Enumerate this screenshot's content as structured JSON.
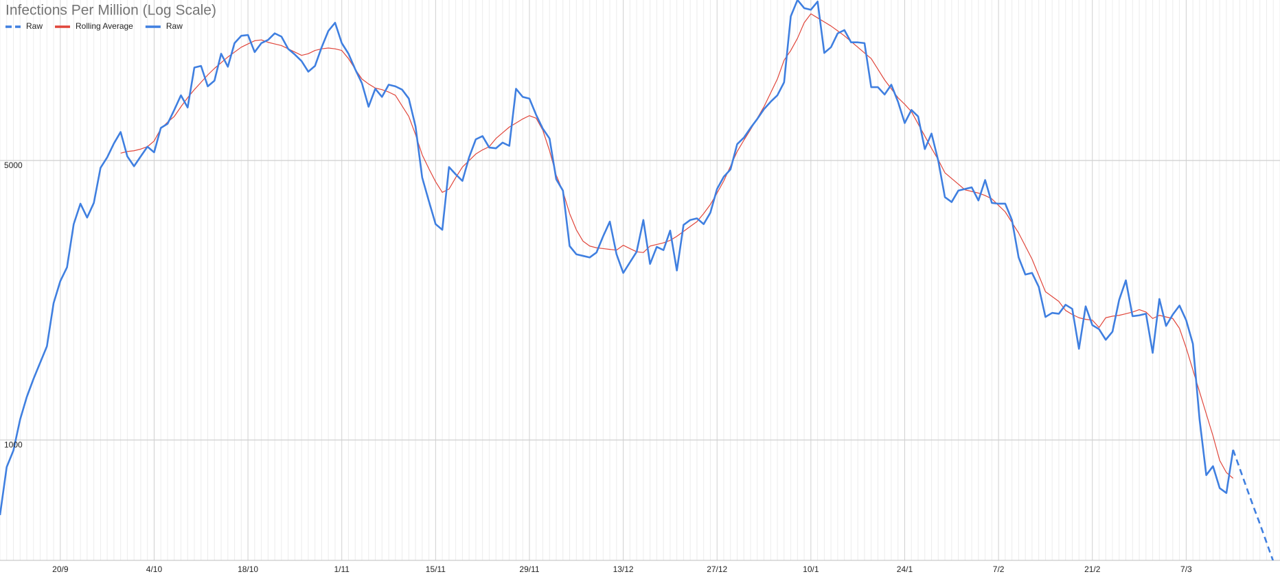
{
  "chart_data": {
    "type": "line",
    "title": "Infections Per Million (Log Scale)",
    "log_scale": true,
    "grid": true,
    "legend": "top-left",
    "categories": [
      null,
      null,
      null,
      null,
      null,
      null,
      null,
      null,
      null,
      "20/9",
      null,
      null,
      null,
      null,
      null,
      null,
      null,
      null,
      null,
      null,
      null,
      null,
      null,
      "4/10",
      null,
      null,
      null,
      null,
      null,
      null,
      null,
      null,
      null,
      null,
      null,
      null,
      null,
      "18/10",
      null,
      null,
      null,
      null,
      null,
      null,
      null,
      null,
      null,
      null,
      null,
      null,
      null,
      "1/11",
      null,
      null,
      null,
      null,
      null,
      null,
      null,
      null,
      null,
      null,
      null,
      null,
      null,
      "15/11",
      null,
      null,
      null,
      null,
      null,
      null,
      null,
      null,
      null,
      null,
      null,
      null,
      null,
      "29/11",
      null,
      null,
      null,
      null,
      null,
      null,
      null,
      null,
      null,
      null,
      null,
      null,
      null,
      "13/12",
      null,
      null,
      null,
      null,
      null,
      null,
      null,
      null,
      null,
      null,
      null,
      null,
      null,
      "27/12",
      null,
      null,
      null,
      null,
      null,
      null,
      null,
      null,
      null,
      null,
      null,
      null,
      null,
      "10/1",
      null,
      null,
      null,
      null,
      null,
      null,
      null,
      null,
      null,
      null,
      null,
      null,
      null,
      "24/1",
      null,
      null,
      null,
      null,
      null,
      null,
      null,
      null,
      null,
      null,
      null,
      null,
      null,
      "7/2",
      null,
      null,
      null,
      null,
      null,
      null,
      null,
      null,
      null,
      null,
      null,
      null,
      null,
      "21/2",
      null,
      null,
      null,
      null,
      null,
      null,
      null,
      null,
      null,
      null,
      null,
      null,
      null,
      "7/3",
      null,
      null,
      null,
      null,
      null,
      null,
      null,
      null,
      null,
      null,
      null,
      null,
      null,
      null
    ],
    "ylim": [
      500,
      12600
    ],
    "yticks": [
      1000,
      5000
    ],
    "series": [
      {
        "name": "Raw",
        "color": "#3f7fe0",
        "dashed": true,
        "values": [
          null,
          null,
          null,
          null,
          null,
          null,
          null,
          null,
          null,
          null,
          null,
          null,
          null,
          null,
          null,
          null,
          null,
          null,
          null,
          null,
          null,
          null,
          null,
          null,
          null,
          null,
          null,
          null,
          null,
          null,
          null,
          null,
          null,
          null,
          null,
          null,
          null,
          null,
          null,
          null,
          null,
          null,
          null,
          null,
          null,
          null,
          null,
          null,
          null,
          null,
          null,
          null,
          null,
          null,
          null,
          null,
          null,
          null,
          null,
          null,
          null,
          null,
          null,
          null,
          null,
          null,
          null,
          null,
          null,
          null,
          null,
          null,
          null,
          null,
          null,
          null,
          null,
          null,
          null,
          null,
          null,
          null,
          null,
          null,
          null,
          null,
          null,
          null,
          null,
          null,
          null,
          null,
          null,
          null,
          null,
          null,
          null,
          null,
          null,
          null,
          null,
          null,
          null,
          null,
          null,
          null,
          null,
          null,
          null,
          null,
          null,
          null,
          null,
          null,
          null,
          null,
          null,
          null,
          null,
          null,
          null,
          null,
          null,
          null,
          null,
          null,
          null,
          null,
          null,
          null,
          null,
          null,
          null,
          null,
          null,
          null,
          null,
          null,
          null,
          null,
          null,
          null,
          null,
          null,
          null,
          null,
          null,
          null,
          null,
          null,
          null,
          null,
          null,
          null,
          null,
          null,
          null,
          null,
          null,
          null,
          null,
          null,
          null,
          null,
          null,
          null,
          null,
          null,
          null,
          null,
          null,
          null,
          null,
          null,
          null,
          null,
          null,
          null,
          null,
          null,
          null,
          null,
          null,
          null,
          945,
          848,
          761,
          684,
          617,
          554,
          497,
          446
        ]
      },
      {
        "name": "Rolling Average",
        "color": "#e0453a",
        "values": [
          null,
          null,
          null,
          null,
          null,
          null,
          null,
          null,
          null,
          null,
          null,
          null,
          null,
          null,
          null,
          null,
          null,
          null,
          5215,
          5266,
          5290,
          5340,
          5414,
          5595,
          6005,
          6235,
          6442,
          6815,
          7177,
          7520,
          7845,
          8184,
          8497,
          8780,
          9075,
          9335,
          9601,
          9782,
          9965,
          10014,
          9874,
          9782,
          9691,
          9511,
          9335,
          9161,
          9247,
          9422,
          9511,
          9556,
          9511,
          9422,
          8991,
          8459,
          7996,
          7769,
          7589,
          7520,
          7415,
          7278,
          6847,
          6442,
          5809,
          5166,
          4769,
          4425,
          4162,
          4242,
          4531,
          4815,
          5000,
          5191,
          5315,
          5414,
          5675,
          5866,
          6062,
          6205,
          6352,
          6473,
          6381,
          5950,
          5290,
          4594,
          4184,
          3684,
          3355,
          3142,
          3055,
          3025,
          3011,
          2997,
          2985,
          3069,
          3011,
          2956,
          2943,
          3055,
          3083,
          3112,
          3157,
          3232,
          3324,
          3420,
          3517,
          3684,
          3881,
          4145,
          4446,
          4837,
          5266,
          5621,
          5976,
          6381,
          6815,
          7381,
          7996,
          8907,
          9422,
          10107,
          11053,
          11635,
          11367,
          11105,
          10847,
          10547,
          10253,
          9920,
          9601,
          9290,
          8991,
          8459,
          7953,
          7556,
          7177,
          6911,
          6626,
          6176,
          5755,
          5365,
          5023,
          4659,
          4509,
          4364,
          4223,
          4184,
          4145,
          4087,
          4010,
          3862,
          3720,
          3500,
          3293,
          3055,
          2834,
          2580,
          2349,
          2284,
          2221,
          2109,
          2060,
          2022,
          2003,
          1994,
          1911,
          2022,
          2040,
          2050,
          2069,
          2089,
          2118,
          2089,
          2013,
          2050,
          2031,
          2013,
          1902,
          1700,
          1497,
          1319,
          1162,
          1024,
          889,
          829,
          802,
          null,
          null,
          null,
          null,
          null,
          null,
          null
        ]
      },
      {
        "name": "Raw",
        "color": "#3f7fe0",
        "values": [
          649,
          856,
          941,
          1125,
          1282,
          1422,
          1562,
          1715,
          2200,
          2497,
          2704,
          3467,
          3899,
          3600,
          3917,
          4793,
          5093,
          5518,
          5892,
          5120,
          4837,
          5120,
          5414,
          5241,
          6033,
          6176,
          6690,
          7278,
          6785,
          8538,
          8619,
          7664,
          7919,
          9247,
          8579,
          9829,
          10253,
          10302,
          9335,
          9829,
          10014,
          10399,
          10205,
          9511,
          9204,
          8865,
          8340,
          8619,
          9601,
          10547,
          11053,
          9829,
          9247,
          8459,
          7809,
          6815,
          7556,
          7211,
          7735,
          7664,
          7520,
          7143,
          6090,
          4531,
          3955,
          3467,
          3355,
          4815,
          4617,
          4446,
          5093,
          5649,
          5755,
          5389,
          5364,
          5543,
          5441,
          7556,
          7211,
          7143,
          6504,
          6005,
          5675,
          4489,
          4204,
          3055,
          2914,
          2887,
          2861,
          2943,
          3232,
          3517,
          2914,
          2617,
          2782,
          2956,
          3550,
          2756,
          3041,
          2985,
          3339,
          2654,
          3451,
          3550,
          3583,
          3467,
          3703,
          4244,
          4552,
          4749,
          5493,
          5703,
          6033,
          6352,
          6721,
          7013,
          7278,
          7845,
          11472,
          12603,
          12025,
          11912,
          12486,
          9290,
          9601,
          10399,
          10596,
          9874,
          9874,
          9829,
          7627,
          7627,
          7313,
          7735,
          7013,
          6204,
          6690,
          6442,
          5340,
          5839,
          5000,
          4049,
          3936,
          4204,
          4244,
          4283,
          3973,
          4468,
          3917,
          3899,
          3899,
          3550,
          2861,
          2593,
          2617,
          2416,
          2031,
          2079,
          2069,
          2179,
          2128,
          1691,
          2159,
          1938,
          1893,
          1781,
          1866,
          2241,
          2508,
          2040,
          2050,
          2069,
          1652,
          2252,
          1929,
          2059,
          2169,
          1993,
          1740,
          1125,
          817,
          860,
          758,
          737,
          945,
          null,
          null,
          null,
          null,
          null,
          null,
          null
        ]
      }
    ]
  }
}
